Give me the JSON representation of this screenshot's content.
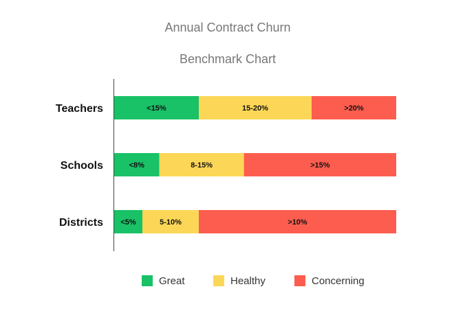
{
  "chart_data": {
    "type": "bar",
    "orientation": "horizontal",
    "stacked": true,
    "title": "Annual Contract Churn",
    "subtitle": "Benchmark Chart",
    "xlabel": "",
    "ylabel": "",
    "grid": false,
    "legend_position": "bottom",
    "categories": [
      "Teachers",
      "Schools",
      "Districts"
    ],
    "series": [
      {
        "name": "Great",
        "color": "#19c167",
        "values": [
          30,
          16,
          10
        ],
        "labels": [
          "<15%",
          "<8%",
          "<5%"
        ]
      },
      {
        "name": "Healthy",
        "color": "#fcd757",
        "values": [
          40,
          30,
          20
        ],
        "labels": [
          "15-20%",
          "8-15%",
          "5-10%"
        ]
      },
      {
        "name": "Concerning",
        "color": "#fd5d4f",
        "values": [
          30,
          54,
          70
        ],
        "labels": [
          ">20%",
          ">15%",
          ">10%"
        ]
      }
    ]
  }
}
